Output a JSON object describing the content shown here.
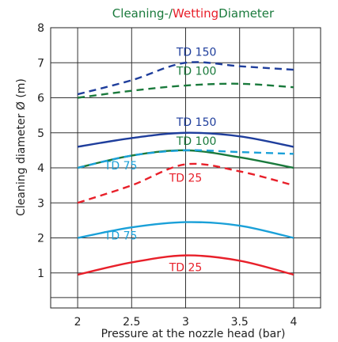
{
  "chart_data": {
    "type": "line",
    "title": {
      "part1": "Cleaning-/",
      "part2": "Wetting",
      "part3": "Diameter",
      "color1": "#1a7a3c",
      "color2": "#e8202a",
      "color3": "#1a7a3c"
    },
    "xlabel": "Pressure at the nozzle head (bar)",
    "ylabel": "Cleaning diameter Ø (m)",
    "xlim": [
      1.75,
      4.25
    ],
    "ylim": [
      0,
      8
    ],
    "xticks": [
      "2",
      "2.5",
      "3",
      "3.5",
      "4"
    ],
    "xtick_values": [
      2,
      2.5,
      3,
      3.5,
      4
    ],
    "yticks": [
      "1",
      "2",
      "3",
      "4",
      "5",
      "6",
      "7",
      "8"
    ],
    "ytick_values": [
      1,
      2,
      3,
      4,
      5,
      6,
      7,
      8
    ],
    "grid": true,
    "series": [
      {
        "name": "TD 150",
        "kind": "wetting",
        "dashed": true,
        "color": "#1f3e9c",
        "x": [
          2,
          2.5,
          3,
          3.5,
          4
        ],
        "y": [
          6.1,
          6.5,
          7.0,
          6.9,
          6.8
        ],
        "label_at": [
          3.1,
          7.2
        ]
      },
      {
        "name": "TD 100",
        "kind": "wetting",
        "dashed": true,
        "color": "#1a7a3c",
        "x": [
          2,
          2.5,
          3,
          3.5,
          4
        ],
        "y": [
          6.0,
          6.2,
          6.35,
          6.4,
          6.3
        ],
        "label_at": [
          3.1,
          6.65
        ]
      },
      {
        "name": "TD 150",
        "kind": "cleaning",
        "dashed": false,
        "color": "#1f3e9c",
        "x": [
          2,
          2.5,
          3,
          3.5,
          4
        ],
        "y": [
          4.6,
          4.85,
          5.0,
          4.9,
          4.6
        ],
        "label_at": [
          3.1,
          5.2
        ]
      },
      {
        "name": "TD 100",
        "kind": "cleaning",
        "dashed": false,
        "color": "#1a7a3c",
        "x": [
          2,
          2.5,
          3,
          3.5,
          4
        ],
        "y": [
          4.0,
          4.35,
          4.5,
          4.3,
          4.0
        ],
        "label_at": [
          3.1,
          4.65
        ]
      },
      {
        "name": "TD 75",
        "kind": "wetting",
        "dashed": true,
        "color": "#1aa0d8",
        "x": [
          2,
          2.5,
          3,
          3.5,
          4
        ],
        "y": [
          4.0,
          4.35,
          4.5,
          4.45,
          4.4
        ],
        "label_at": [
          2.4,
          3.95
        ]
      },
      {
        "name": "TD 25",
        "kind": "wetting",
        "dashed": true,
        "color": "#e8202a",
        "x": [
          2,
          2.5,
          3,
          3.5,
          4
        ],
        "y": [
          3.0,
          3.5,
          4.1,
          3.9,
          3.5
        ],
        "label_at": [
          3.0,
          3.6
        ]
      },
      {
        "name": "TD 75",
        "kind": "cleaning",
        "dashed": false,
        "color": "#1aa0d8",
        "x": [
          2,
          2.5,
          3,
          3.5,
          4
        ],
        "y": [
          2.0,
          2.3,
          2.45,
          2.35,
          2.0
        ],
        "label_at": [
          2.4,
          1.95
        ]
      },
      {
        "name": "TD 25",
        "kind": "cleaning",
        "dashed": false,
        "color": "#e8202a",
        "x": [
          2,
          2.5,
          3,
          3.5,
          4
        ],
        "y": [
          0.95,
          1.3,
          1.5,
          1.35,
          0.95
        ],
        "label_at": [
          3.0,
          1.05
        ]
      }
    ]
  }
}
